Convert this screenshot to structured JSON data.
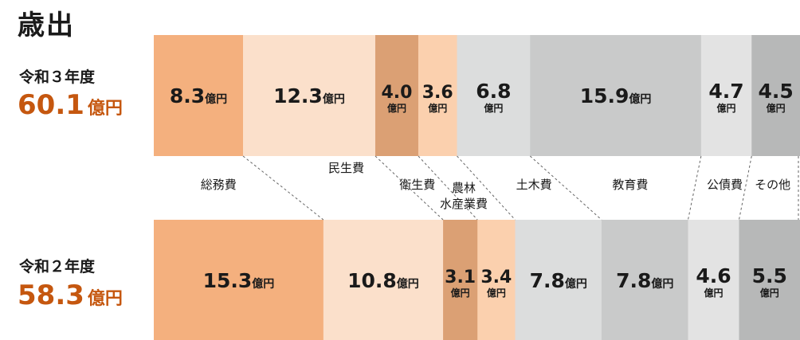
{
  "page": {
    "title": "歳出"
  },
  "rows": [
    {
      "year": "令和３年度",
      "total": "60.1",
      "unit": "億円"
    },
    {
      "year": "令和２年度",
      "total": "58.3",
      "unit": "億円"
    }
  ],
  "categories": [
    {
      "name": "総務費",
      "color": "#f4b07e"
    },
    {
      "name": "民生費",
      "color": "#fbe0cb"
    },
    {
      "name": "衛生費",
      "color": "#dba074"
    },
    {
      "name": "農林\n水産業費",
      "color": "#fbd0ae"
    },
    {
      "name": "土木費",
      "color": "#dcdddd"
    },
    {
      "name": "教育費",
      "color": "#c9caca"
    },
    {
      "name": "公債費",
      "color": "#e3e3e3"
    },
    {
      "name": "その他",
      "color": "#b7b8b8"
    }
  ],
  "chart_data": {
    "type": "bar",
    "orientation": "horizontal-stacked",
    "title": "歳出",
    "unit": "億円",
    "categories": [
      "総務費",
      "民生費",
      "衛生費",
      "農林水産業費",
      "土木費",
      "教育費",
      "公債費",
      "その他"
    ],
    "series": [
      {
        "name": "令和３年度",
        "total": 60.1,
        "values": [
          8.3,
          12.3,
          4.0,
          3.6,
          6.8,
          15.9,
          4.7,
          4.5
        ]
      },
      {
        "name": "令和２年度",
        "total": 58.3,
        "values": [
          15.3,
          10.8,
          3.1,
          3.4,
          7.8,
          7.8,
          4.6,
          5.5
        ]
      }
    ]
  }
}
